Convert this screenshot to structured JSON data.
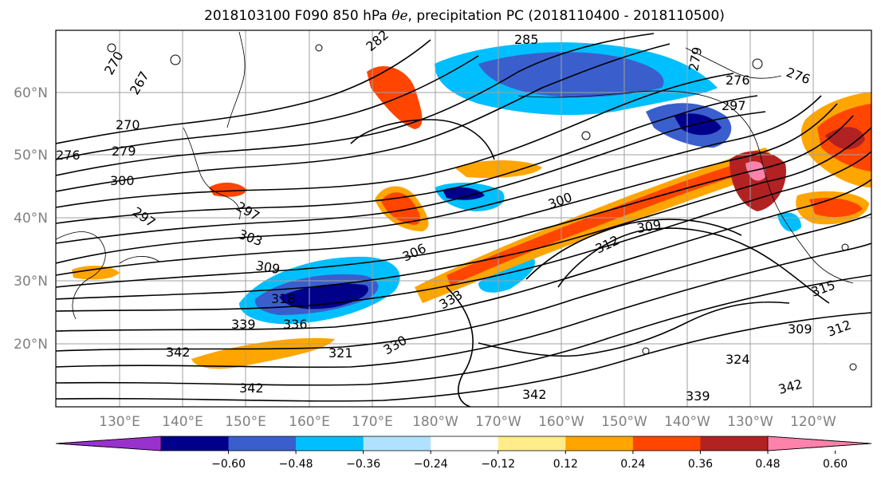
{
  "title": {
    "prefix": "2018103100 F090 850 hPa ",
    "var": "θe",
    "suffix": ", precipitation PC (2018110400 - 2018110500)"
  },
  "axes": {
    "lat_labels": [
      "60°N",
      "50°N",
      "40°N",
      "30°N",
      "20°N"
    ],
    "lon_labels": [
      "130°E",
      "140°E",
      "150°E",
      "160°E",
      "170°E",
      "180°W",
      "170°W",
      "160°W",
      "150°W",
      "140°W",
      "130°W",
      "120°W"
    ]
  },
  "contour_labels": [
    "282",
    "285",
    "279",
    "276",
    "270",
    "267",
    "270",
    "279",
    "276",
    "300",
    "297",
    "297",
    "303",
    "309",
    "306",
    "300",
    "309",
    "312",
    "318",
    "336",
    "339",
    "333",
    "330",
    "321",
    "342",
    "342",
    "342",
    "339",
    "342",
    "324",
    "309",
    "312",
    "315",
    "276",
    "297"
  ],
  "colorbar": {
    "colors": [
      "#9932cc",
      "#00008b",
      "#3a5fcd",
      "#00bfff",
      "#b0e2ff",
      "#ffffff",
      "#ffec8b",
      "#ffa500",
      "#ff4500",
      "#b22222",
      "#ff82ab"
    ],
    "ticks": [
      "−0.60",
      "−0.48",
      "−0.36",
      "−0.24",
      "−0.12",
      "0.12",
      "0.24",
      "0.36",
      "0.48",
      "0.60"
    ]
  },
  "fill_colors": {
    "neg_strong": "#00008b",
    "neg_mid": "#3a5fcd",
    "neg_light": "#00bfff",
    "neg_pale": "#b0e2ff",
    "pos_pale": "#ffec8b",
    "pos_light": "#ffa500",
    "pos_mid": "#ff4500",
    "pos_strong": "#b22222",
    "pos_max": "#ff82ab"
  }
}
